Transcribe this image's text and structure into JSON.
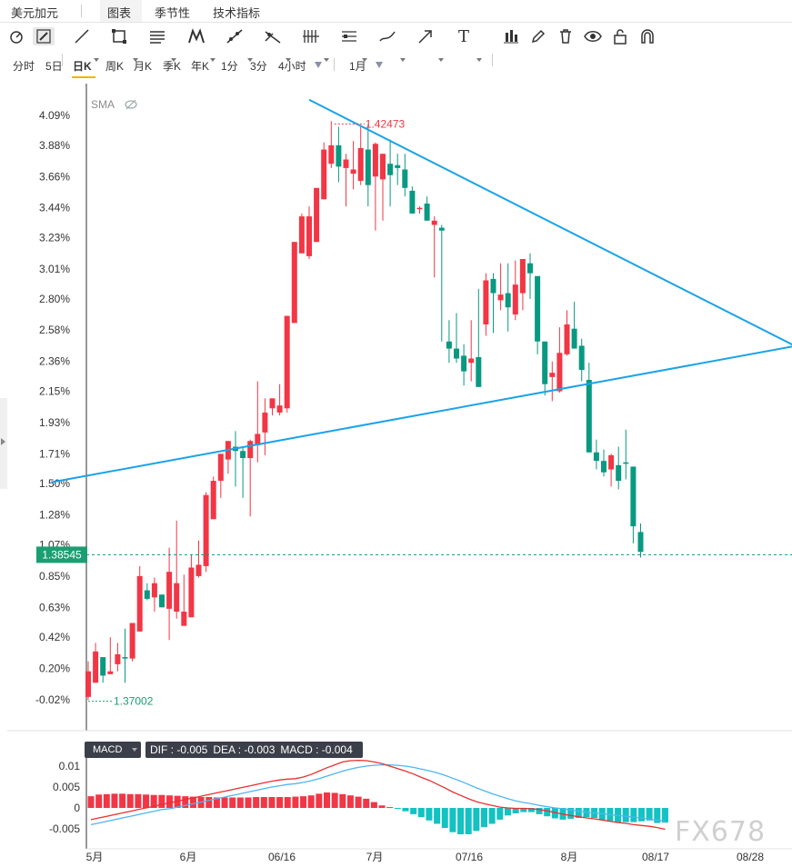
{
  "tabs": [
    {
      "label": "美元加元"
    },
    {
      "label": "图表"
    },
    {
      "label": "季节性"
    },
    {
      "label": "技术指标"
    }
  ],
  "toolbar": {
    "icons": [
      "cursor-icon",
      "pencil-icon",
      "line-icon",
      "rectangle-icon",
      "fibonacci-icon",
      "pattern-icon",
      "ray-icon",
      "measure-icon",
      "bars-icon",
      "channel-icon",
      "brush-icon",
      "arrow-icon",
      "text-icon",
      "candles-icon",
      "edit-icon",
      "trash-icon",
      "eye-icon",
      "lock-icon",
      "magnet-icon"
    ],
    "text_tool": "T"
  },
  "periods": [
    "分时",
    "5日",
    "日K",
    "周K",
    "月K",
    "季K",
    "年K",
    "1分",
    "3分",
    "4小时"
  ],
  "active_period": "日K",
  "range_selector": "1月",
  "indicator": {
    "sma_label": "SMA"
  },
  "chart_data": [
    {
      "type": "candlestick",
      "title": "",
      "y_axis": {
        "unit": "percent",
        "ticks": [
          "4.09%",
          "3.88%",
          "3.66%",
          "3.44%",
          "3.23%",
          "3.01%",
          "2.80%",
          "2.58%",
          "2.36%",
          "2.15%",
          "1.93%",
          "1.71%",
          "1.50%",
          "1.28%",
          "1.07%",
          "0.85%",
          "0.63%",
          "0.42%",
          "0.20%",
          "-0.02%"
        ],
        "tick_values": [
          4.09,
          3.88,
          3.66,
          3.44,
          3.23,
          3.01,
          2.8,
          2.58,
          2.36,
          2.15,
          1.93,
          1.71,
          1.5,
          1.28,
          1.07,
          0.85,
          0.63,
          0.42,
          0.2,
          -0.02
        ]
      },
      "x_axis": {
        "labels": [
          "5月",
          "6月",
          "06/16",
          "7月",
          "07/16",
          "8月",
          "08/17",
          "08/28"
        ]
      },
      "ohlc_percent": [
        [
          0.0,
          0.25,
          -0.02,
          0.18
        ],
        [
          0.1,
          0.38,
          0.1,
          0.32
        ],
        [
          0.28,
          0.28,
          0.1,
          0.15
        ],
        [
          0.16,
          0.42,
          0.16,
          0.18
        ],
        [
          0.23,
          0.38,
          0.18,
          0.3
        ],
        [
          0.28,
          0.48,
          0.1,
          0.27
        ],
        [
          0.27,
          0.52,
          0.25,
          0.52
        ],
        [
          0.46,
          0.92,
          0.46,
          0.85
        ],
        [
          0.75,
          0.8,
          0.68,
          0.69
        ],
        [
          0.7,
          0.84,
          0.6,
          0.8
        ],
        [
          0.72,
          0.72,
          0.64,
          0.63
        ],
        [
          0.62,
          1.05,
          0.4,
          0.88
        ],
        [
          0.6,
          1.24,
          0.55,
          0.8
        ],
        [
          0.5,
          0.86,
          0.5,
          0.6
        ],
        [
          0.56,
          1.0,
          0.56,
          0.91
        ],
        [
          0.85,
          1.1,
          0.84,
          0.93
        ],
        [
          0.92,
          1.44,
          0.88,
          1.42
        ],
        [
          1.25,
          1.55,
          1.25,
          1.52
        ],
        [
          1.52,
          1.7,
          1.4,
          1.71
        ],
        [
          1.67,
          1.78,
          1.57,
          1.8
        ],
        [
          1.76,
          1.87,
          1.48,
          1.73
        ],
        [
          1.73,
          1.75,
          1.4,
          1.68
        ],
        [
          1.68,
          1.81,
          1.27,
          1.8
        ],
        [
          1.77,
          2.22,
          1.65,
          1.85
        ],
        [
          1.86,
          2.1,
          1.7,
          2.0
        ],
        [
          2.03,
          2.08,
          1.98,
          2.1
        ],
        [
          2.0,
          2.2,
          1.98,
          2.05
        ],
        [
          2.03,
          2.38,
          2.0,
          2.68
        ],
        [
          2.63,
          3.02,
          2.63,
          3.2
        ],
        [
          3.12,
          3.4,
          3.12,
          3.38
        ],
        [
          3.1,
          3.45,
          3.08,
          3.38
        ],
        [
          3.2,
          3.56,
          3.2,
          3.58
        ],
        [
          3.5,
          3.9,
          3.5,
          3.85
        ],
        [
          3.75,
          4.05,
          3.72,
          3.88
        ],
        [
          3.88,
          4.01,
          3.62,
          3.73
        ],
        [
          3.72,
          3.82,
          3.45,
          3.78
        ],
        [
          3.68,
          3.91,
          3.57,
          3.71
        ],
        [
          3.63,
          4.01,
          3.6,
          3.86
        ],
        [
          3.85,
          4.03,
          3.45,
          3.6
        ],
        [
          3.66,
          3.9,
          3.28,
          3.89
        ],
        [
          3.64,
          3.79,
          3.35,
          3.82
        ],
        [
          3.75,
          3.92,
          3.45,
          3.67
        ],
        [
          3.74,
          3.82,
          3.6,
          3.72
        ],
        [
          3.71,
          3.82,
          3.52,
          3.58
        ],
        [
          3.56,
          3.59,
          3.42,
          3.4
        ],
        [
          3.44,
          3.45,
          3.4,
          3.44
        ],
        [
          3.47,
          3.52,
          3.36,
          3.35
        ],
        [
          3.32,
          3.38,
          2.95,
          3.35
        ],
        [
          3.3,
          3.32,
          2.5,
          3.28
        ],
        [
          2.5,
          2.65,
          2.35,
          2.45
        ],
        [
          2.45,
          2.7,
          2.35,
          2.38
        ],
        [
          2.4,
          2.48,
          2.19,
          2.29
        ],
        [
          2.35,
          2.65,
          2.22,
          2.38
        ],
        [
          2.39,
          2.87,
          2.19,
          2.18
        ],
        [
          2.62,
          2.98,
          2.54,
          2.93
        ],
        [
          2.94,
          2.98,
          2.56,
          2.84
        ],
        [
          2.79,
          3.05,
          2.72,
          2.83
        ],
        [
          2.84,
          3.05,
          2.57,
          2.74
        ],
        [
          2.69,
          3.07,
          2.65,
          2.9
        ],
        [
          2.84,
          3.07,
          2.72,
          3.08
        ],
        [
          3.05,
          3.12,
          2.8,
          2.98
        ],
        [
          2.96,
          2.96,
          2.41,
          2.5
        ],
        [
          2.5,
          2.5,
          2.12,
          2.2
        ],
        [
          2.25,
          2.36,
          2.08,
          2.28
        ],
        [
          2.15,
          2.6,
          2.14,
          2.42
        ],
        [
          2.41,
          2.72,
          2.4,
          2.62
        ],
        [
          2.59,
          2.78,
          2.52,
          2.45
        ],
        [
          2.47,
          2.52,
          2.22,
          2.3
        ],
        [
          2.23,
          2.35,
          1.97,
          1.72
        ],
        [
          1.72,
          1.81,
          1.6,
          1.66
        ],
        [
          1.66,
          1.74,
          1.55,
          1.58
        ],
        [
          1.6,
          1.71,
          1.48,
          1.7
        ],
        [
          1.63,
          1.76,
          1.46,
          1.52
        ],
        [
          1.65,
          1.88,
          1.53,
          1.64
        ],
        [
          1.62,
          1.6,
          1.08,
          1.2
        ],
        [
          1.16,
          1.22,
          0.98,
          1.02
        ]
      ],
      "trendlines": [
        {
          "name": "",
          "from": {
            "bar": 30,
            "value": 4.2
          },
          "to": {
            "bar": 110,
            "value": 2.1
          }
        },
        {
          "name": "",
          "from": {
            "bar": -5,
            "value": 1.51
          },
          "to": {
            "bar": 112,
            "value": 2.62
          }
        }
      ],
      "annotations": {
        "high_label": "1.42473",
        "low_label": "1.37002"
      },
      "current_price": {
        "label": "1.38545",
        "percent": 1.0
      },
      "colors": {
        "up": "#f23645",
        "down": "#089981",
        "trendline": "#1aa3e8",
        "current_line": "#089981",
        "grid": "#ffffff"
      }
    },
    {
      "type": "bar",
      "title": "MACD",
      "values_text": {
        "dif": "DIF : -0.005",
        "dea": "DEA : -0.003",
        "macd": "MACD : -0.004"
      },
      "y_axis": {
        "ticks": [
          "0.01",
          "0.005",
          "0",
          "-0.005"
        ],
        "tick_values": [
          0.01,
          0.005,
          0,
          -0.005
        ]
      },
      "histogram": [
        0.0028,
        0.0032,
        0.0033,
        0.0034,
        0.0034,
        0.0033,
        0.0033,
        0.0032,
        0.0031,
        0.0031,
        0.003,
        0.0029,
        0.0028,
        0.0027,
        0.0026,
        0.0026,
        0.0025,
        0.0025,
        0.0025,
        0.0025,
        0.0025,
        0.0026,
        0.0026,
        0.0026,
        0.0026,
        0.0026,
        0.0027,
        0.0028,
        0.003,
        0.0034,
        0.0037,
        0.0036,
        0.0033,
        0.003,
        0.0027,
        0.0022,
        0.0014,
        0.0006,
        0.0002,
        -0.0002,
        -0.0008,
        -0.0015,
        -0.0022,
        -0.003,
        -0.0038,
        -0.0048,
        -0.0058,
        -0.0063,
        -0.0063,
        -0.0055,
        -0.0046,
        -0.0038,
        -0.0028,
        -0.0018,
        -0.0013,
        -0.001,
        -0.001,
        -0.0015,
        -0.002,
        -0.0025,
        -0.0028,
        -0.0026,
        -0.0024,
        -0.0022,
        -0.0024,
        -0.0028,
        -0.0031,
        -0.0035,
        -0.0034,
        -0.0034,
        -0.0032,
        -0.003,
        -0.0036,
        -0.0035
      ],
      "dif": [
        -0.0028,
        -0.0024,
        -0.002,
        -0.0016,
        -0.0012,
        -0.0008,
        -0.0004,
        0.0,
        0.0004,
        0.0008,
        0.0012,
        0.0016,
        0.002,
        0.0024,
        0.0028,
        0.0032,
        0.0036,
        0.004,
        0.0044,
        0.0048,
        0.0052,
        0.0056,
        0.006,
        0.0064,
        0.0067,
        0.0069,
        0.007,
        0.0074,
        0.008,
        0.0088,
        0.0096,
        0.0103,
        0.011,
        0.0113,
        0.0114,
        0.0113,
        0.011,
        0.0106,
        0.01,
        0.0094,
        0.0088,
        0.0081,
        0.0073,
        0.0066,
        0.0057,
        0.0048,
        0.0038,
        0.003,
        0.0022,
        0.0015,
        0.001,
        0.0006,
        0.0002,
        0.0,
        -0.0001,
        -0.0001,
        -0.0002,
        -0.0004,
        -0.0007,
        -0.0011,
        -0.0015,
        -0.0018,
        -0.0021,
        -0.0024,
        -0.0026,
        -0.0029,
        -0.0032,
        -0.0035,
        -0.0037,
        -0.004,
        -0.0042,
        -0.0044,
        -0.0047,
        -0.0051
      ],
      "dea": [
        -0.004,
        -0.0036,
        -0.0032,
        -0.0028,
        -0.0024,
        -0.002,
        -0.0016,
        -0.0012,
        -0.0008,
        -0.0004,
        -0.0002,
        0.0002,
        0.0006,
        0.001,
        0.0014,
        0.0018,
        0.0022,
        0.0026,
        0.003,
        0.0034,
        0.0038,
        0.0042,
        0.0046,
        0.005,
        0.0053,
        0.0056,
        0.0058,
        0.0061,
        0.0065,
        0.007,
        0.0076,
        0.0082,
        0.0088,
        0.0093,
        0.0097,
        0.01,
        0.0102,
        0.0103,
        0.0103,
        0.0102,
        0.01,
        0.0097,
        0.0093,
        0.0089,
        0.0084,
        0.0078,
        0.0071,
        0.0064,
        0.0056,
        0.0048,
        0.0041,
        0.0034,
        0.0028,
        0.0022,
        0.0017,
        0.0013,
        0.001,
        0.0006,
        0.0003,
        0.0,
        -0.0002,
        -0.0005,
        -0.0008,
        -0.001,
        -0.0012,
        -0.0014,
        -0.0016,
        -0.0018,
        -0.002,
        -0.0022,
        -0.0024,
        -0.0027,
        -0.0029,
        -0.0032
      ],
      "colors": {
        "positive": "#f23645",
        "negative": "#13c2c2",
        "dif": "#e8302f",
        "dea": "#4db6ef"
      }
    }
  ],
  "watermark": "FX678"
}
